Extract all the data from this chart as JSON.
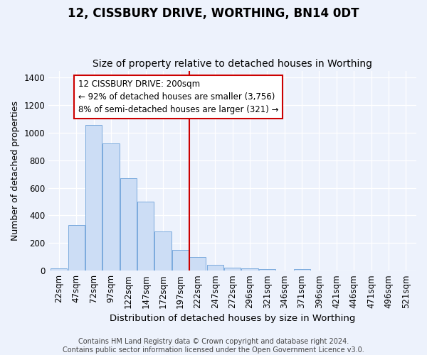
{
  "title": "12, CISSBURY DRIVE, WORTHING, BN14 0DT",
  "subtitle": "Size of property relative to detached houses in Worthing",
  "xlabel": "Distribution of detached houses by size in Worthing",
  "ylabel": "Number of detached properties",
  "categories": [
    "22sqm",
    "47sqm",
    "72sqm",
    "97sqm",
    "122sqm",
    "147sqm",
    "172sqm",
    "197sqm",
    "222sqm",
    "247sqm",
    "272sqm",
    "296sqm",
    "321sqm",
    "346sqm",
    "371sqm",
    "396sqm",
    "421sqm",
    "446sqm",
    "471sqm",
    "496sqm",
    "521sqm"
  ],
  "values": [
    18,
    330,
    1055,
    920,
    670,
    500,
    285,
    150,
    100,
    40,
    20,
    15,
    10,
    0,
    10,
    0,
    0,
    0,
    0,
    0,
    0
  ],
  "bar_color": "#ccddf5",
  "bar_edgecolor": "#7aaadd",
  "background_color": "#edf2fc",
  "grid_color": "#ffffff",
  "vline_color": "#cc0000",
  "annotation_text": "12 CISSBURY DRIVE: 200sqm\n← 92% of detached houses are smaller (3,756)\n8% of semi-detached houses are larger (321) →",
  "annotation_box_facecolor": "#ffffff",
  "annotation_box_edgecolor": "#cc0000",
  "ylim": [
    0,
    1450
  ],
  "yticks": [
    0,
    200,
    400,
    600,
    800,
    1000,
    1200,
    1400
  ],
  "footer": "Contains HM Land Registry data © Crown copyright and database right 2024.\nContains public sector information licensed under the Open Government Licence v3.0.",
  "title_fontsize": 12,
  "subtitle_fontsize": 10,
  "xlabel_fontsize": 9.5,
  "ylabel_fontsize": 9,
  "tick_fontsize": 8.5,
  "footer_fontsize": 7,
  "annot_fontsize": 8.5
}
